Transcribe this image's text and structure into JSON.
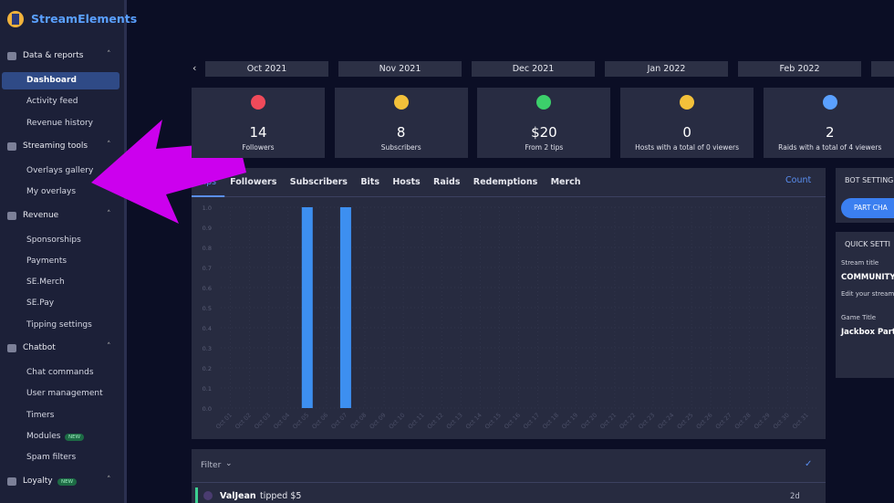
{
  "brand": "StreamElements",
  "sidebar": [
    {
      "title": "Data & reports",
      "items": [
        {
          "label": "Dashboard"
        },
        {
          "label": "Activity feed"
        },
        {
          "label": "Revenue history"
        }
      ]
    },
    {
      "title": "Streaming tools",
      "items": [
        {
          "label": "Overlays gallery"
        },
        {
          "label": "My overlays"
        }
      ]
    },
    {
      "title": "Revenue",
      "items": [
        {
          "label": "Sponsorships"
        },
        {
          "label": "Payments"
        },
        {
          "label": "SE.Merch"
        },
        {
          "label": "SE.Pay"
        },
        {
          "label": "Tipping settings"
        }
      ]
    },
    {
      "title": "Chatbot",
      "items": [
        {
          "label": "Chat commands"
        },
        {
          "label": "User management"
        },
        {
          "label": "Timers"
        },
        {
          "label": "Modules",
          "badge": "NEW"
        },
        {
          "label": "Spam filters"
        }
      ]
    },
    {
      "title": "Loyalty",
      "badge": "NEW",
      "items": []
    }
  ],
  "months": [
    "Oct 2021",
    "Nov 2021",
    "Dec 2021",
    "Jan 2022",
    "Feb 2022"
  ],
  "stats": [
    {
      "value": 14,
      "label": "Followers"
    },
    {
      "value": 8,
      "label": "Subscribers"
    },
    {
      "value": "$20",
      "label": "From 2 tips"
    },
    {
      "value": 0,
      "label": "Hosts with a total of 0 viewers"
    },
    {
      "value": 2,
      "label": "Raids with a total of 4 viewers"
    }
  ],
  "chart": {
    "type": "bar",
    "tabs": [
      "Tips",
      "Followers",
      "Subscribers",
      "Bits",
      "Hosts",
      "Raids",
      "Redemptions",
      "Merch"
    ],
    "measure": "Count",
    "color": "#3d8ff0",
    "categories": [
      "Oct 01",
      "Oct 02",
      "Oct 03",
      "Oct 04",
      "Oct 05",
      "Oct 06",
      "Oct 07",
      "Oct 08",
      "Oct 09",
      "Oct 10",
      "Oct 11",
      "Oct 12",
      "Oct 13",
      "Oct 14",
      "Oct 15",
      "Oct 16",
      "Oct 17",
      "Oct 18",
      "Oct 19",
      "Oct 20",
      "Oct 21",
      "Oct 22",
      "Oct 23",
      "Oct 24",
      "Oct 25",
      "Oct 26",
      "Oct 27",
      "Oct 28",
      "Oct 29",
      "Oct 30",
      "Oct 31"
    ],
    "values": [
      0,
      0,
      0,
      0,
      1,
      0,
      1,
      0,
      0,
      0,
      0,
      0,
      0,
      0,
      0,
      0,
      0,
      0,
      0,
      0,
      0,
      0,
      0,
      0,
      0,
      0,
      0,
      0,
      0,
      0,
      0
    ],
    "ylim": [
      0,
      1
    ],
    "yticks": [
      {
        "value": 0,
        "label": "0.0"
      },
      {
        "value": 0.1,
        "label": "0.1"
      },
      {
        "value": 0.2,
        "label": "0.2"
      },
      {
        "value": 0.3,
        "label": "0.3"
      },
      {
        "value": 0.4,
        "label": "0.4"
      },
      {
        "value": 0.5,
        "label": "0.5"
      },
      {
        "value": 0.6,
        "label": "0.6"
      },
      {
        "value": 0.7,
        "label": "0.7"
      },
      {
        "value": 0.8,
        "label": "0.8"
      },
      {
        "value": 0.9,
        "label": "0.9"
      },
      {
        "value": 1,
        "label": "1.0"
      }
    ]
  },
  "bot_settings": {
    "title": "BOT SETTING",
    "button": "PART CHA"
  },
  "quick_settings": {
    "title": "QUICK SETTI",
    "stream_title_label": "Stream title",
    "stream_title": "COMMUNITY",
    "stream_hint": "Edit your stream",
    "game_label": "Game Title",
    "game": "Jackbox Part"
  },
  "activity": {
    "filter": "Filter",
    "items": [
      {
        "user": "ValJean",
        "action": "tipped $5",
        "time": "2d"
      }
    ]
  }
}
